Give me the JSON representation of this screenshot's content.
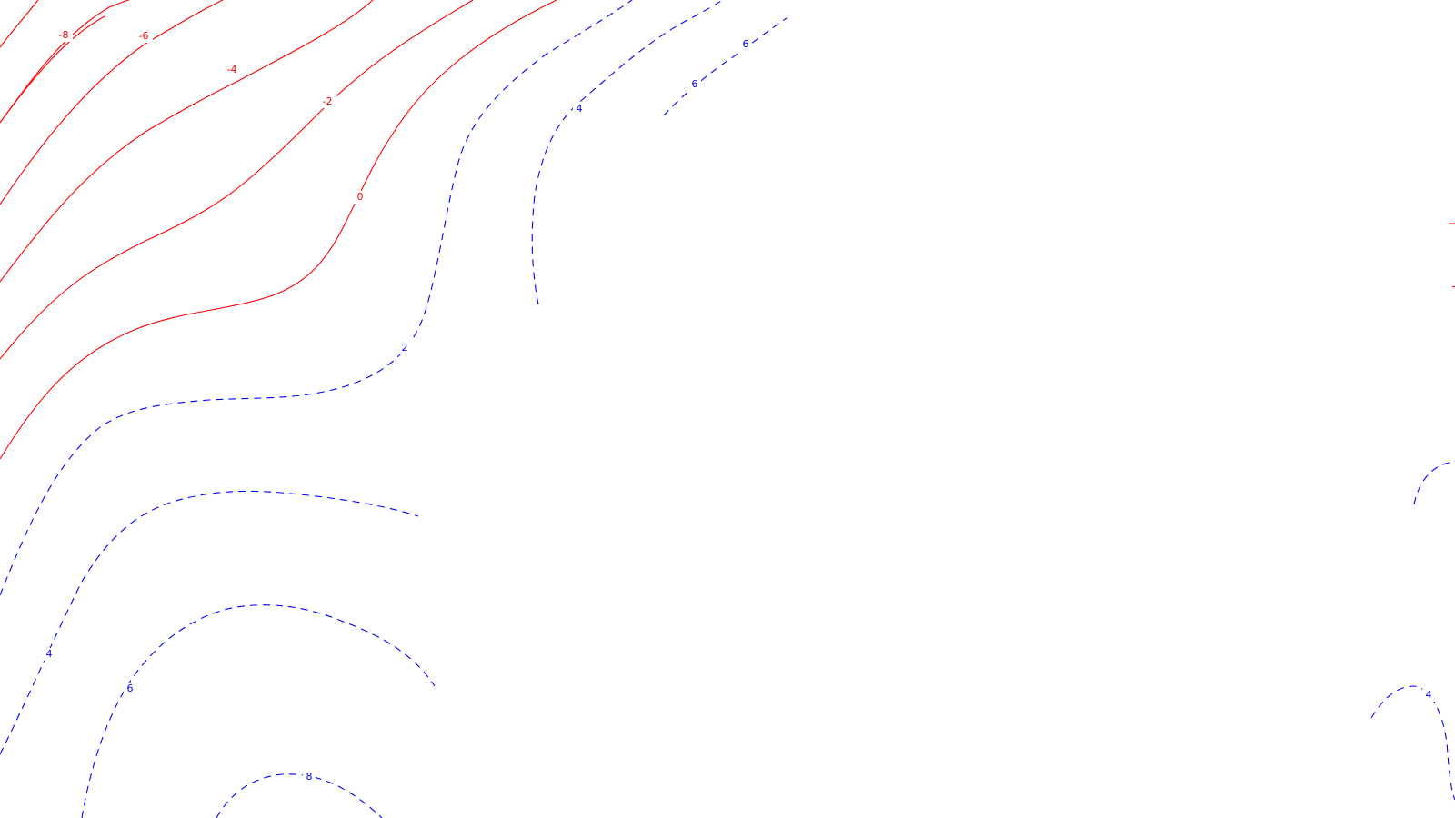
{
  "map": {
    "colors": {
      "negative": "#ff0000",
      "positive": "#0000ff",
      "background": "#ffffff"
    },
    "line_styles": {
      "negative": "solid",
      "positive": "dashed"
    },
    "contour_labels": {
      "neg8": "-8",
      "neg6": "-6",
      "neg4": "-4",
      "neg2": "-2",
      "zero": "0",
      "pos2": "2",
      "pos4_upper": "4",
      "pos6_upper_a": "6",
      "pos6_upper_b": "6",
      "pos4_lower": "4",
      "pos6_lower": "6",
      "pos8_lower": "8",
      "pos4_right": "4"
    }
  }
}
